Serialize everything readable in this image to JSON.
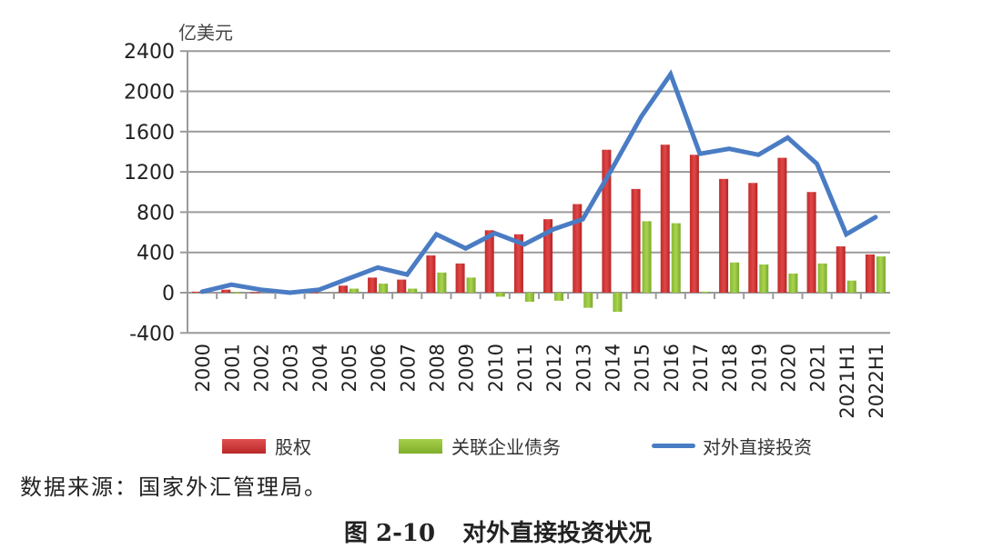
{
  "chart_data": {
    "type": "bar",
    "title": "对外直接投资状况",
    "figure_number": "图 2-10",
    "xlabel": "",
    "ylabel": "亿美元",
    "ylim": [
      -400,
      2400
    ],
    "yticks": [
      -400,
      0,
      400,
      800,
      1200,
      1600,
      2000,
      2400
    ],
    "grid": true,
    "legend_position": "bottom",
    "categories": [
      "2000",
      "2001",
      "2002",
      "2003",
      "2004",
      "2005",
      "2006",
      "2007",
      "2008",
      "2009",
      "2010",
      "2011",
      "2012",
      "2013",
      "2014",
      "2015",
      "2016",
      "2017",
      "2018",
      "2019",
      "2020",
      "2021",
      "2021H1",
      "2022H1"
    ],
    "series": [
      {
        "name": "股权",
        "type": "bar",
        "color": "#d23a3a",
        "values": [
          10,
          30,
          5,
          0,
          5,
          70,
          150,
          130,
          370,
          290,
          620,
          580,
          730,
          880,
          1420,
          1030,
          1470,
          1370,
          1130,
          1090,
          1340,
          1000,
          460,
          380
        ]
      },
      {
        "name": "关联企业债务",
        "type": "bar",
        "color": "#92c13a",
        "values": [
          0,
          5,
          0,
          0,
          0,
          40,
          90,
          40,
          200,
          150,
          -40,
          -90,
          -80,
          -150,
          -190,
          710,
          690,
          10,
          300,
          280,
          190,
          290,
          120,
          360
        ]
      },
      {
        "name": "对外直接投资",
        "type": "line",
        "color": "#4a7cc4",
        "values": [
          10,
          80,
          30,
          0,
          30,
          140,
          250,
          180,
          580,
          440,
          590,
          480,
          630,
          730,
          1230,
          1750,
          2170,
          1380,
          1430,
          1370,
          1540,
          1280,
          580,
          750
        ]
      }
    ]
  },
  "labels": {
    "unit": "亿美元",
    "legend": [
      "股权",
      "关联企业债务",
      "对外直接投资"
    ],
    "source": "数据来源：国家外汇管理局。",
    "caption_number": "图 2-10",
    "caption_title": "对外直接投资状况"
  }
}
